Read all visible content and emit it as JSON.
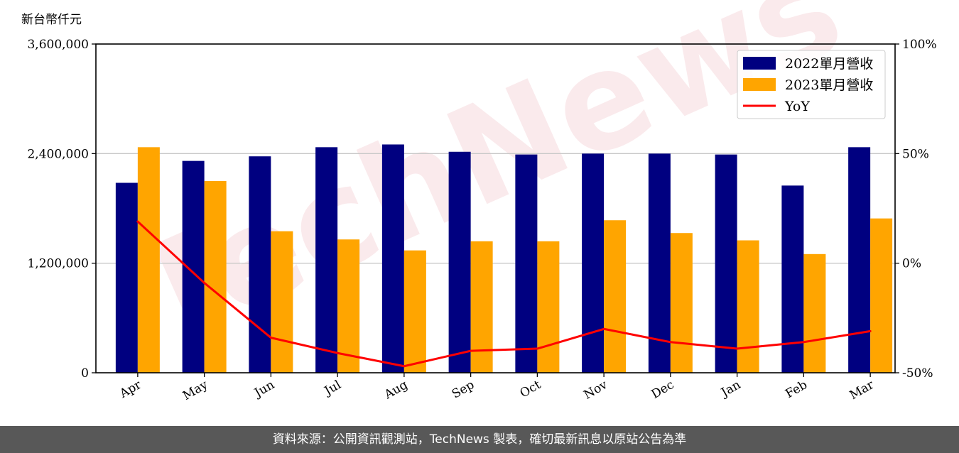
{
  "chart_data": {
    "type": "bar",
    "unit_label": "新台幣仟元",
    "categories": [
      "Apr",
      "May",
      "Jun",
      "Jul",
      "Aug",
      "Sep",
      "Oct",
      "Nov",
      "Dec",
      "Jan",
      "Feb",
      "Mar"
    ],
    "series": [
      {
        "name": "2022單月營收",
        "type": "bar",
        "axis": "left",
        "color": "#000080",
        "values": [
          2080000,
          2320000,
          2370000,
          2470000,
          2500000,
          2420000,
          2390000,
          2400000,
          2400000,
          2390000,
          2050000,
          2470000
        ]
      },
      {
        "name": "2023單月營收",
        "type": "bar",
        "axis": "left",
        "color": "#FFA500",
        "values": [
          2470000,
          2100000,
          1550000,
          1460000,
          1340000,
          1440000,
          1440000,
          1670000,
          1530000,
          1450000,
          1300000,
          1690000
        ]
      },
      {
        "name": "YoY",
        "type": "line",
        "axis": "right",
        "color": "#FF0000",
        "values": [
          19,
          -9,
          -34,
          -41,
          -47,
          -40,
          -39,
          -30,
          -36,
          -39,
          -36,
          -31
        ]
      }
    ],
    "left_axis": {
      "ylim": [
        0,
        3600000
      ],
      "ticks": [
        0,
        1200000,
        2400000,
        3600000
      ],
      "tick_labels": [
        "0",
        "1,200,000",
        "2,400,000",
        "3,600,000"
      ]
    },
    "right_axis": {
      "ylim": [
        -50,
        100
      ],
      "ticks": [
        -50,
        0,
        50,
        100
      ],
      "tick_labels": [
        "-50%",
        "0%",
        "50%",
        "100%"
      ]
    },
    "grid": "horizontal",
    "legend_position": "top-right"
  },
  "watermark": "TechNews",
  "footer": {
    "text": "資料來源：公開資訊觀測站，TechNews 製表，確切最新訊息以原站公告為準"
  }
}
